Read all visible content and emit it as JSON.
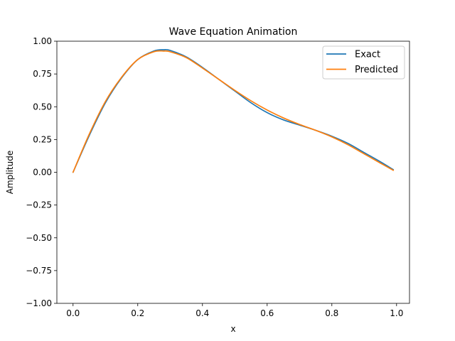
{
  "chart_data": {
    "type": "line",
    "title": "Wave Equation Animation",
    "xlabel": "x",
    "ylabel": "Amplitude",
    "xlim": [
      -0.05,
      1.04
    ],
    "ylim": [
      -1.0,
      1.0
    ],
    "xticks": [
      0.0,
      0.2,
      0.4,
      0.6,
      0.8,
      1.0
    ],
    "xtick_labels": [
      "0.0",
      "0.2",
      "0.4",
      "0.6",
      "0.8",
      "1.0"
    ],
    "yticks": [
      -1.0,
      -0.75,
      -0.5,
      -0.25,
      0.0,
      0.25,
      0.5,
      0.75,
      1.0
    ],
    "ytick_labels": [
      "−1.00",
      "−0.75",
      "−0.50",
      "−0.25",
      "0.00",
      "0.25",
      "0.50",
      "0.75",
      "1.00"
    ],
    "grid": false,
    "legend_position": "top-right",
    "series": [
      {
        "name": "Exact",
        "color": "#1f77b4",
        "x": [
          0.0,
          0.05,
          0.1,
          0.15,
          0.2,
          0.25,
          0.28,
          0.3,
          0.35,
          0.4,
          0.45,
          0.5,
          0.55,
          0.6,
          0.65,
          0.7,
          0.75,
          0.8,
          0.85,
          0.9,
          0.95,
          0.99
        ],
        "y": [
          0.0,
          0.28,
          0.53,
          0.72,
          0.86,
          0.925,
          0.935,
          0.93,
          0.88,
          0.8,
          0.71,
          0.62,
          0.53,
          0.455,
          0.4,
          0.36,
          0.32,
          0.275,
          0.22,
          0.15,
          0.08,
          0.02
        ]
      },
      {
        "name": "Predicted",
        "color": "#ff7f0e",
        "x": [
          0.0,
          0.05,
          0.1,
          0.15,
          0.2,
          0.25,
          0.28,
          0.3,
          0.35,
          0.4,
          0.45,
          0.5,
          0.55,
          0.6,
          0.65,
          0.7,
          0.75,
          0.8,
          0.85,
          0.9,
          0.95,
          0.99
        ],
        "y": [
          0.0,
          0.29,
          0.54,
          0.725,
          0.86,
          0.92,
          0.925,
          0.92,
          0.875,
          0.795,
          0.71,
          0.625,
          0.545,
          0.475,
          0.415,
          0.365,
          0.32,
          0.27,
          0.21,
          0.14,
          0.07,
          0.015
        ]
      }
    ]
  }
}
